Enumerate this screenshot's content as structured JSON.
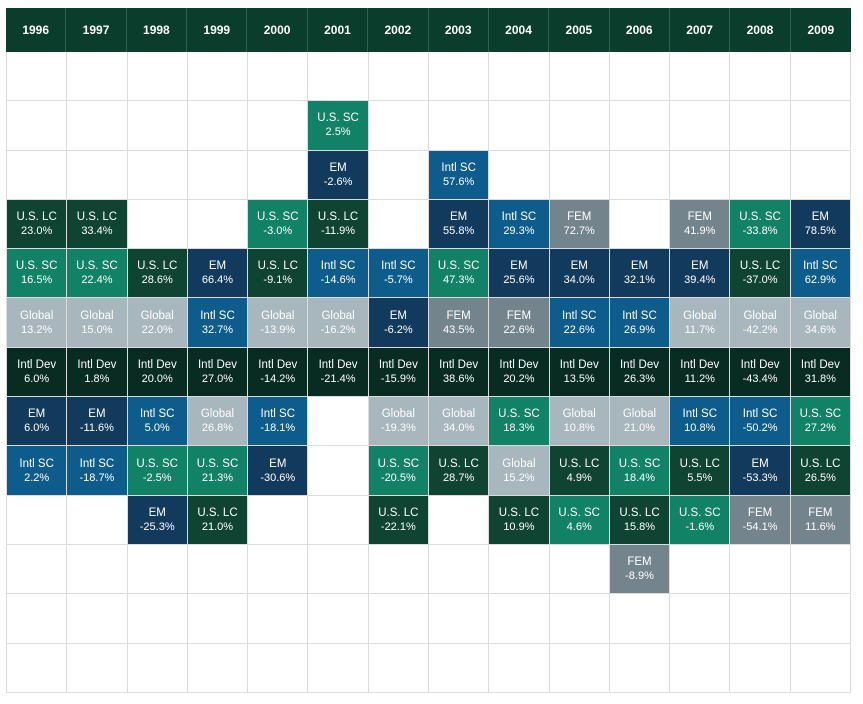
{
  "colors": {
    "header": "#0b3d2c",
    "U.S. LC": "#0f4332",
    "U.S. SC": "#128266",
    "Global": "#a8b6be",
    "EM": "#123a5d",
    "Intl SC": "#0e5c8c",
    "Intl Dev": "#082b22",
    "FEM": "#74848c"
  },
  "chart_data": {
    "type": "table",
    "years": [
      "1996",
      "1997",
      "1998",
      "1999",
      "2000",
      "2001",
      "2002",
      "2003",
      "2004",
      "2005",
      "2006",
      "2007",
      "2008",
      "2009"
    ],
    "cells": [
      {
        "year": "1996",
        "row": 3,
        "label": "U.S. LC",
        "value": "23.0%"
      },
      {
        "year": "1996",
        "row": 4,
        "label": "U.S. SC",
        "value": "16.5%"
      },
      {
        "year": "1996",
        "row": 5,
        "label": "Global",
        "value": "13.2%"
      },
      {
        "year": "1996",
        "row": 6,
        "label": "Intl Dev",
        "value": "6.0%"
      },
      {
        "year": "1996",
        "row": 7,
        "label": "EM",
        "value": "6.0%"
      },
      {
        "year": "1996",
        "row": 8,
        "label": "Intl SC",
        "value": "2.2%"
      },
      {
        "year": "1997",
        "row": 3,
        "label": "U.S. LC",
        "value": "33.4%"
      },
      {
        "year": "1997",
        "row": 4,
        "label": "U.S. SC",
        "value": "22.4%"
      },
      {
        "year": "1997",
        "row": 5,
        "label": "Global",
        "value": "15.0%"
      },
      {
        "year": "1997",
        "row": 6,
        "label": "Intl Dev",
        "value": "1.8%"
      },
      {
        "year": "1997",
        "row": 7,
        "label": "EM",
        "value": "-11.6%"
      },
      {
        "year": "1997",
        "row": 8,
        "label": "Intl SC",
        "value": "-18.7%"
      },
      {
        "year": "1998",
        "row": 4,
        "label": "U.S. LC",
        "value": "28.6%"
      },
      {
        "year": "1998",
        "row": 5,
        "label": "Global",
        "value": "22.0%"
      },
      {
        "year": "1998",
        "row": 6,
        "label": "Intl Dev",
        "value": "20.0%"
      },
      {
        "year": "1998",
        "row": 7,
        "label": "Intl SC",
        "value": "5.0%"
      },
      {
        "year": "1998",
        "row": 8,
        "label": "U.S. SC",
        "value": "-2.5%"
      },
      {
        "year": "1998",
        "row": 9,
        "label": "EM",
        "value": "-25.3%"
      },
      {
        "year": "1999",
        "row": 4,
        "label": "EM",
        "value": "66.4%"
      },
      {
        "year": "1999",
        "row": 5,
        "label": "Intl SC",
        "value": "32.7%"
      },
      {
        "year": "1999",
        "row": 6,
        "label": "Intl Dev",
        "value": "27.0%"
      },
      {
        "year": "1999",
        "row": 7,
        "label": "Global",
        "value": "26.8%"
      },
      {
        "year": "1999",
        "row": 8,
        "label": "U.S. SC",
        "value": "21.3%"
      },
      {
        "year": "1999",
        "row": 9,
        "label": "U.S. LC",
        "value": "21.0%"
      },
      {
        "year": "2000",
        "row": 3,
        "label": "U.S. SC",
        "value": "-3.0%"
      },
      {
        "year": "2000",
        "row": 4,
        "label": "U.S. LC",
        "value": "-9.1%"
      },
      {
        "year": "2000",
        "row": 5,
        "label": "Global",
        "value": "-13.9%"
      },
      {
        "year": "2000",
        "row": 6,
        "label": "Intl Dev",
        "value": "-14.2%"
      },
      {
        "year": "2000",
        "row": 7,
        "label": "Intl SC",
        "value": "-18.1%"
      },
      {
        "year": "2000",
        "row": 8,
        "label": "EM",
        "value": "-30.6%"
      },
      {
        "year": "2001",
        "row": 1,
        "label": "U.S. SC",
        "value": "2.5%"
      },
      {
        "year": "2001",
        "row": 2,
        "label": "EM",
        "value": "-2.6%"
      },
      {
        "year": "2001",
        "row": 3,
        "label": "U.S. LC",
        "value": "-11.9%"
      },
      {
        "year": "2001",
        "row": 4,
        "label": "Intl SC",
        "value": "-14.6%"
      },
      {
        "year": "2001",
        "row": 5,
        "label": "Global",
        "value": "-16.2%"
      },
      {
        "year": "2001",
        "row": 6,
        "label": "Intl Dev",
        "value": "-21.4%"
      },
      {
        "year": "2002",
        "row": 4,
        "label": "Intl SC",
        "value": "-5.7%"
      },
      {
        "year": "2002",
        "row": 5,
        "label": "EM",
        "value": "-6.2%"
      },
      {
        "year": "2002",
        "row": 6,
        "label": "Intl Dev",
        "value": "-15.9%"
      },
      {
        "year": "2002",
        "row": 7,
        "label": "Global",
        "value": "-19.3%"
      },
      {
        "year": "2002",
        "row": 8,
        "label": "U.S. SC",
        "value": "-20.5%"
      },
      {
        "year": "2002",
        "row": 9,
        "label": "U.S. LC",
        "value": "-22.1%"
      },
      {
        "year": "2003",
        "row": 2,
        "label": "Intl SC",
        "value": "57.6%"
      },
      {
        "year": "2003",
        "row": 3,
        "label": "EM",
        "value": "55.8%"
      },
      {
        "year": "2003",
        "row": 4,
        "label": "U.S. SC",
        "value": "47.3%"
      },
      {
        "year": "2003",
        "row": 5,
        "label": "FEM",
        "value": "43.5%"
      },
      {
        "year": "2003",
        "row": 6,
        "label": "Intl Dev",
        "value": "38.6%"
      },
      {
        "year": "2003",
        "row": 7,
        "label": "Global",
        "value": "34.0%"
      },
      {
        "year": "2003",
        "row": 8,
        "label": "U.S. LC",
        "value": "28.7%"
      },
      {
        "year": "2004",
        "row": 3,
        "label": "Intl SC",
        "value": "29.3%"
      },
      {
        "year": "2004",
        "row": 4,
        "label": "EM",
        "value": "25.6%"
      },
      {
        "year": "2004",
        "row": 5,
        "label": "FEM",
        "value": "22.6%"
      },
      {
        "year": "2004",
        "row": 6,
        "label": "Intl Dev",
        "value": "20.2%"
      },
      {
        "year": "2004",
        "row": 7,
        "label": "U.S. SC",
        "value": "18.3%"
      },
      {
        "year": "2004",
        "row": 8,
        "label": "Global",
        "value": "15.2%"
      },
      {
        "year": "2004",
        "row": 9,
        "label": "U.S. LC",
        "value": "10.9%"
      },
      {
        "year": "2005",
        "row": 3,
        "label": "FEM",
        "value": "72.7%"
      },
      {
        "year": "2005",
        "row": 4,
        "label": "EM",
        "value": "34.0%"
      },
      {
        "year": "2005",
        "row": 5,
        "label": "Intl SC",
        "value": "22.6%"
      },
      {
        "year": "2005",
        "row": 6,
        "label": "Intl Dev",
        "value": "13.5%"
      },
      {
        "year": "2005",
        "row": 7,
        "label": "Global",
        "value": "10.8%"
      },
      {
        "year": "2005",
        "row": 8,
        "label": "U.S. LC",
        "value": "4.9%"
      },
      {
        "year": "2005",
        "row": 9,
        "label": "U.S. SC",
        "value": "4.6%"
      },
      {
        "year": "2006",
        "row": 4,
        "label": "EM",
        "value": "32.1%"
      },
      {
        "year": "2006",
        "row": 5,
        "label": "Intl SC",
        "value": "26.9%"
      },
      {
        "year": "2006",
        "row": 6,
        "label": "Intl Dev",
        "value": "26.3%"
      },
      {
        "year": "2006",
        "row": 7,
        "label": "Global",
        "value": "21.0%"
      },
      {
        "year": "2006",
        "row": 8,
        "label": "U.S. SC",
        "value": "18.4%"
      },
      {
        "year": "2006",
        "row": 9,
        "label": "U.S. LC",
        "value": "15.8%"
      },
      {
        "year": "2006",
        "row": 10,
        "label": "FEM",
        "value": "-8.9%"
      },
      {
        "year": "2007",
        "row": 3,
        "label": "FEM",
        "value": "41.9%"
      },
      {
        "year": "2007",
        "row": 4,
        "label": "EM",
        "value": "39.4%"
      },
      {
        "year": "2007",
        "row": 5,
        "label": "Global",
        "value": "11.7%"
      },
      {
        "year": "2007",
        "row": 6,
        "label": "Intl Dev",
        "value": "11.2%"
      },
      {
        "year": "2007",
        "row": 7,
        "label": "Intl SC",
        "value": "10.8%"
      },
      {
        "year": "2007",
        "row": 8,
        "label": "U.S. LC",
        "value": "5.5%"
      },
      {
        "year": "2007",
        "row": 9,
        "label": "U.S. SC",
        "value": "-1.6%"
      },
      {
        "year": "2008",
        "row": 3,
        "label": "U.S. SC",
        "value": "-33.8%"
      },
      {
        "year": "2008",
        "row": 4,
        "label": "U.S. LC",
        "value": "-37.0%"
      },
      {
        "year": "2008",
        "row": 5,
        "label": "Global",
        "value": "-42.2%"
      },
      {
        "year": "2008",
        "row": 6,
        "label": "Intl Dev",
        "value": "-43.4%"
      },
      {
        "year": "2008",
        "row": 7,
        "label": "Intl SC",
        "value": "-50.2%"
      },
      {
        "year": "2008",
        "row": 8,
        "label": "EM",
        "value": "-53.3%"
      },
      {
        "year": "2008",
        "row": 9,
        "label": "FEM",
        "value": "-54.1%"
      },
      {
        "year": "2009",
        "row": 3,
        "label": "EM",
        "value": "78.5%"
      },
      {
        "year": "2009",
        "row": 4,
        "label": "Intl SC",
        "value": "62.9%"
      },
      {
        "year": "2009",
        "row": 5,
        "label": "Global",
        "value": "34.6%"
      },
      {
        "year": "2009",
        "row": 6,
        "label": "Intl Dev",
        "value": "31.8%"
      },
      {
        "year": "2009",
        "row": 7,
        "label": "U.S. SC",
        "value": "27.2%"
      },
      {
        "year": "2009",
        "row": 8,
        "label": "U.S. LC",
        "value": "26.5%"
      },
      {
        "year": "2009",
        "row": 9,
        "label": "FEM",
        "value": "11.6%"
      }
    ]
  }
}
